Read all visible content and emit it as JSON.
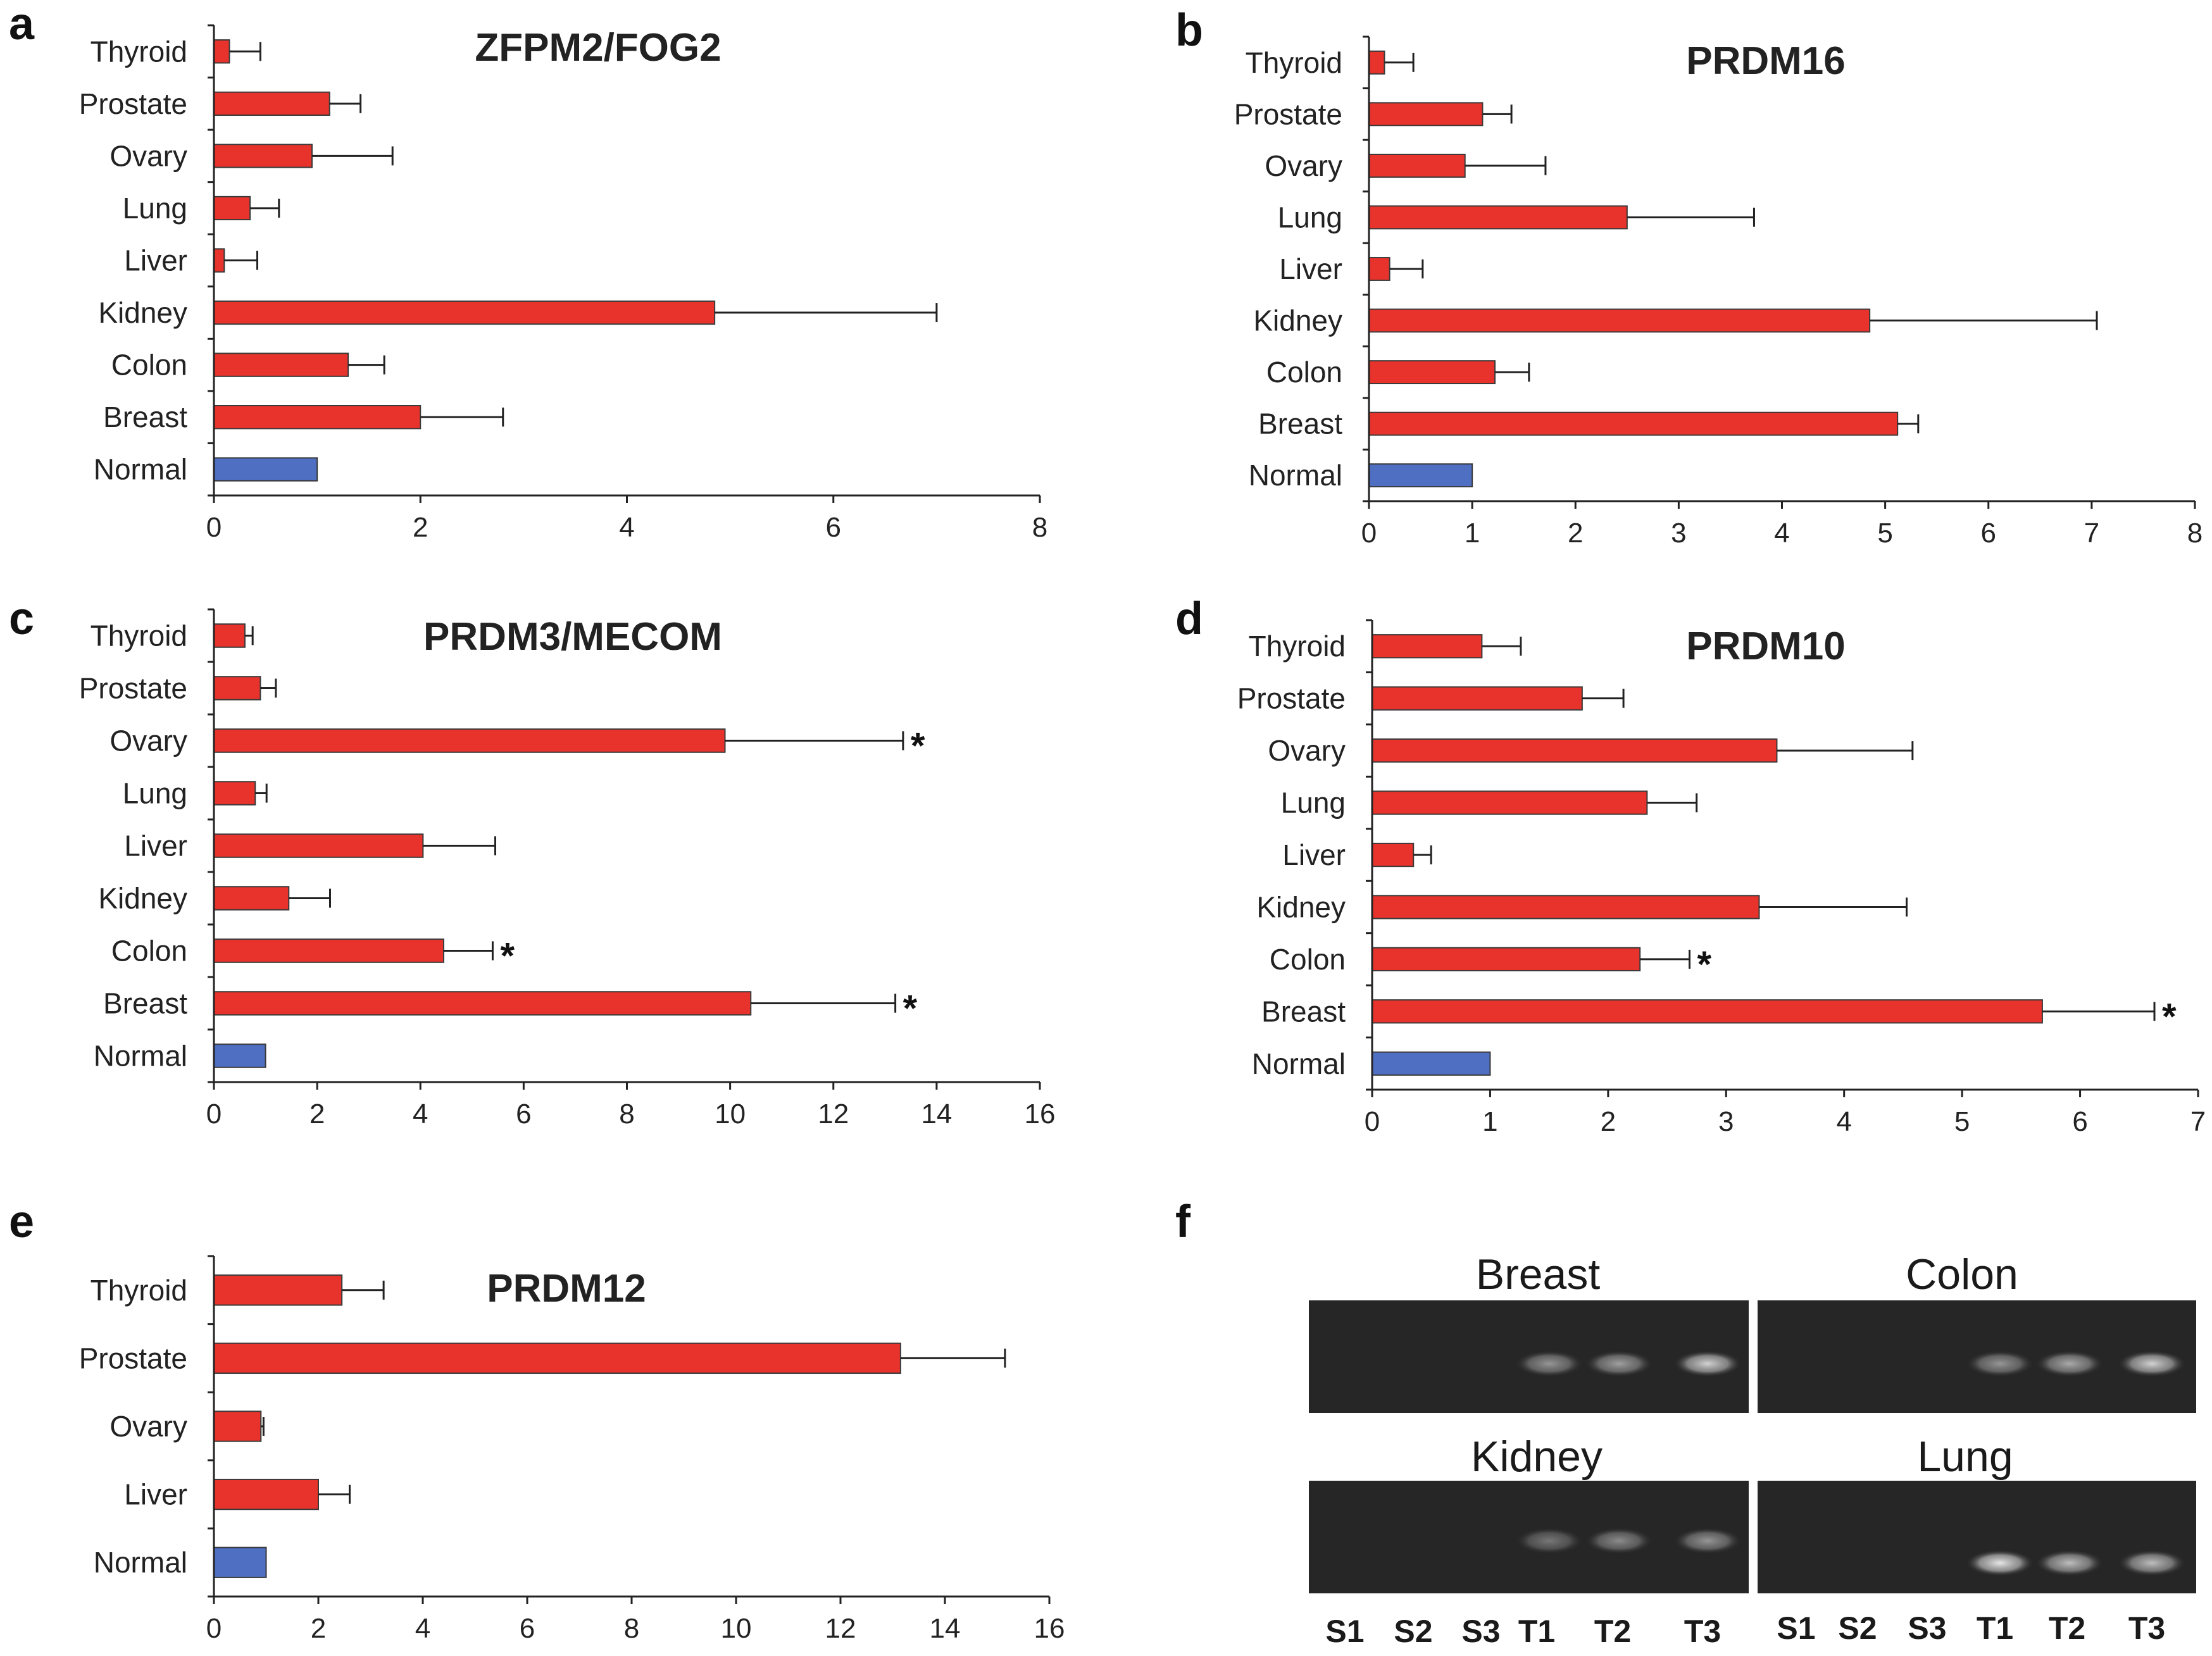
{
  "colors": {
    "tumor": "#e8332c",
    "normal": "#4f6fc2",
    "gel_bg": "#262626",
    "band": "#d9d9d9"
  },
  "chart_data": [
    {
      "panel": "a",
      "type": "bar",
      "orientation": "horizontal",
      "title": "ZFPM2/FOG2",
      "categories": [
        "Thyroid",
        "Prostate",
        "Ovary",
        "Lung",
        "Liver",
        "Kidney",
        "Colon",
        "Breast",
        "Normal"
      ],
      "values": [
        0.15,
        1.12,
        0.95,
        0.35,
        0.1,
        4.85,
        1.3,
        2.0,
        1.0
      ],
      "errors": [
        0.3,
        0.3,
        0.78,
        0.28,
        0.32,
        2.15,
        0.35,
        0.8,
        0
      ],
      "annotations": [
        "",
        "",
        "",
        "",
        "",
        "",
        "",
        "",
        ""
      ],
      "xlim": [
        0,
        8
      ],
      "ticks": [
        "0",
        "2",
        "4",
        "6",
        "8"
      ]
    },
    {
      "panel": "b",
      "type": "bar",
      "orientation": "horizontal",
      "title": "PRDM16",
      "categories": [
        "Thyroid",
        "Prostate",
        "Ovary",
        "Lung",
        "Liver",
        "Kidney",
        "Colon",
        "Breast",
        "Normal"
      ],
      "values": [
        0.15,
        1.1,
        0.93,
        2.5,
        0.2,
        4.85,
        1.22,
        5.12,
        1.0
      ],
      "errors": [
        0.28,
        0.28,
        0.78,
        1.23,
        0.32,
        2.2,
        0.33,
        0.2,
        0
      ],
      "annotations": [
        "",
        "",
        "",
        "",
        "",
        "",
        "",
        "",
        ""
      ],
      "xlim": [
        0,
        8
      ],
      "ticks": [
        "0",
        "1",
        "2",
        "3",
        "4",
        "5",
        "6",
        "7",
        "8"
      ]
    },
    {
      "panel": "c",
      "type": "bar",
      "orientation": "horizontal",
      "title": "PRDM3/MECOM",
      "categories": [
        "Thyroid",
        "Prostate",
        "Ovary",
        "Lung",
        "Liver",
        "Kidney",
        "Colon",
        "Breast",
        "Normal"
      ],
      "values": [
        0.6,
        0.9,
        9.9,
        0.8,
        4.05,
        1.45,
        4.45,
        10.4,
        1.0
      ],
      "errors": [
        0.15,
        0.3,
        3.45,
        0.22,
        1.4,
        0.8,
        0.95,
        2.8,
        0
      ],
      "annotations": [
        "",
        "",
        "*",
        "",
        "",
        "",
        "*",
        "*",
        ""
      ],
      "xlim": [
        0,
        16
      ],
      "ticks": [
        "0",
        "2",
        "4",
        "6",
        "8",
        "10",
        "12",
        "14",
        "16"
      ]
    },
    {
      "panel": "d",
      "type": "bar",
      "orientation": "horizontal",
      "title": "PRDM10",
      "categories": [
        "Thyroid",
        "Prostate",
        "Ovary",
        "Lung",
        "Liver",
        "Kidney",
        "Colon",
        "Breast",
        "Normal"
      ],
      "values": [
        0.93,
        1.78,
        3.43,
        2.33,
        0.35,
        3.28,
        2.27,
        5.68,
        1.0
      ],
      "errors": [
        0.33,
        0.35,
        1.15,
        0.42,
        0.15,
        1.25,
        0.42,
        0.95,
        0
      ],
      "annotations": [
        "",
        "",
        "",
        "",
        "",
        "",
        "*",
        "*",
        ""
      ],
      "xlim": [
        0,
        7
      ],
      "ticks": [
        "0",
        "1",
        "2",
        "3",
        "4",
        "5",
        "6",
        "7"
      ]
    },
    {
      "panel": "e",
      "type": "bar",
      "orientation": "horizontal",
      "title": "PRDM12",
      "categories": [
        "Thyroid",
        "Prostate",
        "Ovary",
        "Liver",
        "Normal"
      ],
      "values": [
        2.45,
        13.15,
        0.9,
        2.0,
        1.0
      ],
      "errors": [
        0.8,
        2.0,
        0.05,
        0.6,
        0
      ],
      "annotations": [
        "",
        "",
        "",
        "",
        ""
      ],
      "xlim": [
        0,
        16
      ],
      "ticks": [
        "0",
        "2",
        "4",
        "6",
        "8",
        "10",
        "12",
        "14",
        "16"
      ]
    }
  ],
  "gel": {
    "panel": "f",
    "blocks": [
      {
        "title": "Breast",
        "bands": [
          0,
          0,
          0,
          0.55,
          0.6,
          0.85
        ]
      },
      {
        "title": "Colon",
        "bands": [
          0,
          0,
          0,
          0.55,
          0.65,
          0.85
        ]
      },
      {
        "title": "Kidney",
        "bands": [
          0,
          0,
          0,
          0.4,
          0.5,
          0.55
        ]
      },
      {
        "title": "Lung",
        "bands": [
          0,
          0,
          0,
          0.95,
          0.75,
          0.75
        ]
      }
    ],
    "left_lanes": [
      "S1",
      "S2",
      "S3",
      "T1",
      "T2",
      "T3"
    ],
    "right_lanes": [
      "S1",
      "S2",
      "S3",
      "T1",
      "T2",
      "T3"
    ]
  }
}
